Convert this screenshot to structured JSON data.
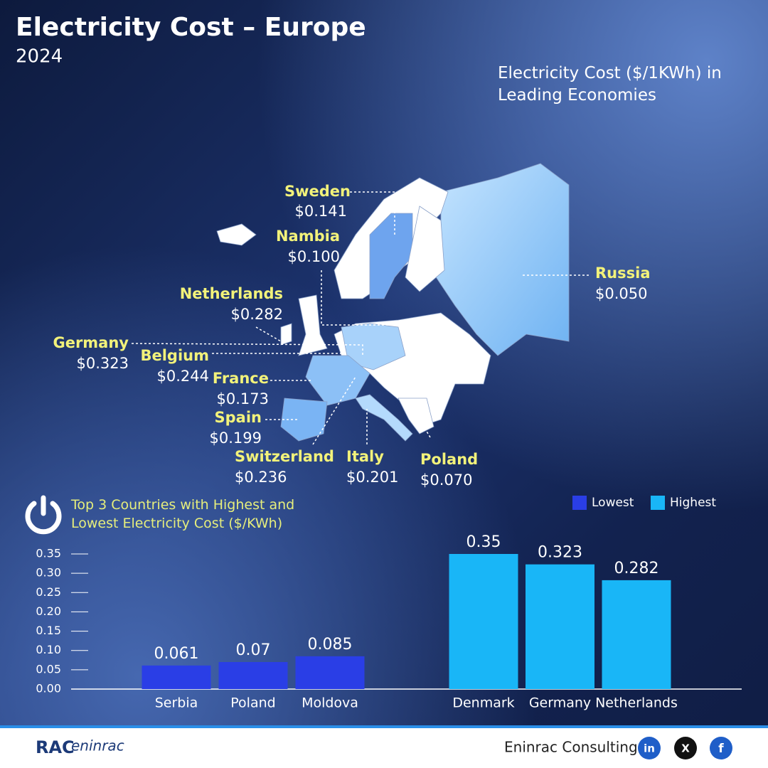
{
  "header": {
    "title": "Electricity Cost – Europe",
    "subtitle": "2024"
  },
  "map": {
    "title": "Electricity Cost ($/1KWh) in Leading Economies",
    "labels": [
      {
        "country": "Sweden",
        "price": "$0.141"
      },
      {
        "country": "Nambia",
        "price": "$0.100"
      },
      {
        "country": "Netherlands",
        "price": "$0.282"
      },
      {
        "country": "Germany",
        "price": "$0.323"
      },
      {
        "country": "Belgium",
        "price": "$0.244"
      },
      {
        "country": "France",
        "price": "$0.173"
      },
      {
        "country": "Spain",
        "price": "$0.199"
      },
      {
        "country": "Switzerland",
        "price": "$0.236"
      },
      {
        "country": "Italy",
        "price": "$0.201"
      },
      {
        "country": "Poland",
        "price": "$0.070"
      },
      {
        "country": "Russia",
        "price": "$0.050"
      }
    ]
  },
  "chart_data": {
    "type": "bar",
    "title": "Top 3 Countries with Highest and Lowest Electricity Cost ($/KWh)",
    "categories": [
      "Serbia",
      "Poland",
      "Moldova",
      "Denmark",
      "Germany",
      "Netherlands"
    ],
    "series": [
      {
        "name": "Lowest",
        "color": "#2a3ee6",
        "values": [
          0.061,
          0.07,
          0.085,
          null,
          null,
          null
        ]
      },
      {
        "name": "Highest",
        "color": "#19b6f7",
        "values": [
          null,
          null,
          null,
          0.35,
          0.323,
          0.282
        ]
      }
    ],
    "ylim": [
      0,
      0.35
    ],
    "yticks": [
      {
        "value": 0,
        "label": "0.00"
      },
      0.05,
      {
        "value": 0.1,
        "label": "0.10"
      },
      0.15,
      {
        "value": 0.2,
        "label": "0.20"
      },
      0.25,
      {
        "value": 0.3,
        "label": "0.30"
      },
      0.35
    ],
    "legend": "top-right"
  },
  "footer": {
    "logo": [
      "RAC",
      "eninrac"
    ],
    "brand": "Eninrac Consulting",
    "social": [
      "in",
      "X",
      "f"
    ]
  }
}
